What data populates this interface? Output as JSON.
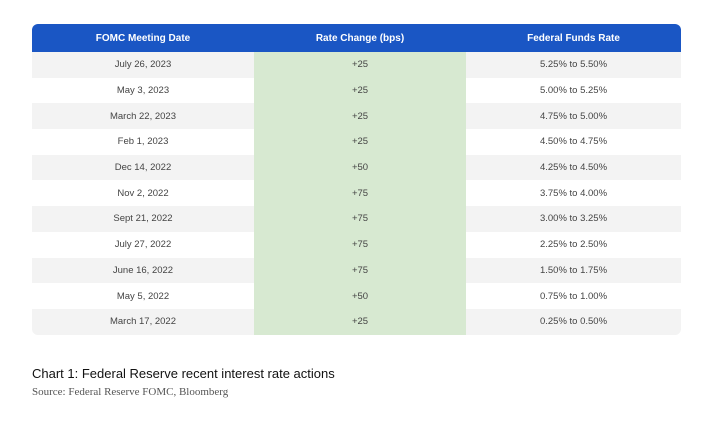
{
  "chart_data": {
    "type": "table",
    "columns": [
      "FOMC Meeting Date",
      "Rate Change (bps)",
      "Federal Funds Rate"
    ],
    "rows": [
      [
        "July 26, 2023",
        "+25",
        "5.25% to 5.50%"
      ],
      [
        "May 3, 2023",
        "+25",
        "5.00% to 5.25%"
      ],
      [
        "March 22, 2023",
        "+25",
        "4.75% to 5.00%"
      ],
      [
        "Feb 1, 2023",
        "+25",
        "4.50% to 4.75%"
      ],
      [
        "Dec 14, 2022",
        "+50",
        "4.25% to 4.50%"
      ],
      [
        "Nov 2, 2022",
        "+75",
        "3.75% to 4.00%"
      ],
      [
        "Sept 21, 2022",
        "+75",
        "3.00% to 3.25%"
      ],
      [
        "July 27, 2022",
        "+75",
        "2.25% to 2.50%"
      ],
      [
        "June 16, 2022",
        "+75",
        "1.50% to 1.75%"
      ],
      [
        "May 5, 2022",
        "+50",
        "0.75% to 1.00%"
      ],
      [
        "March 17, 2022",
        "+25",
        "0.25% to 0.50%"
      ]
    ],
    "colors": {
      "header_bg": "#1a56c4",
      "header_text": "#ffffff",
      "highlight_column": "#d7e9d1",
      "stripe": "#f3f3f3"
    }
  },
  "caption": {
    "title": "Chart 1: Federal Reserve recent interest rate actions",
    "source": "Source: Federal Reserve FOMC, Bloomberg"
  }
}
